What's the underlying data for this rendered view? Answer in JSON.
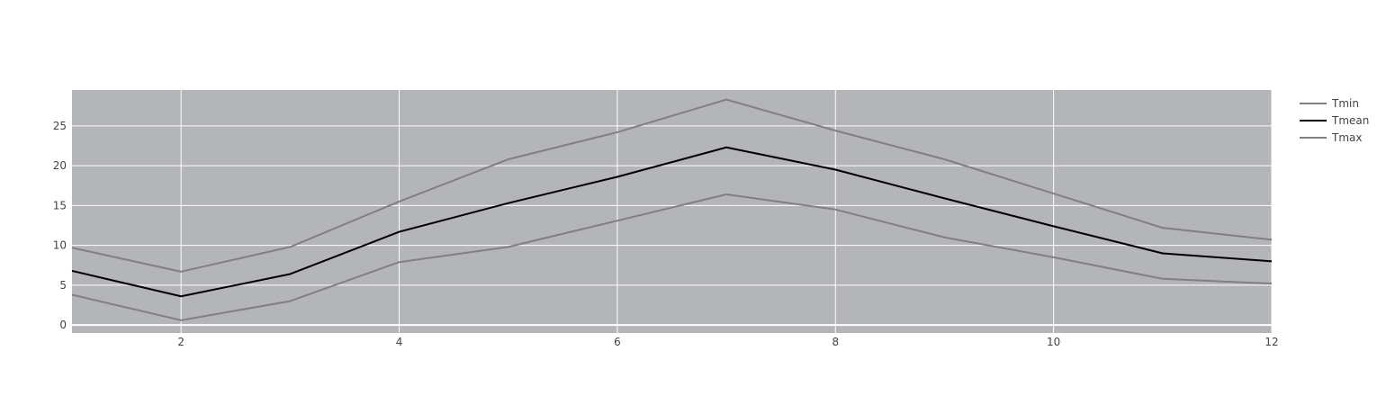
{
  "chart_data": {
    "type": "line",
    "title": "",
    "xlabel": "",
    "ylabel": "",
    "x": [
      1,
      2,
      3,
      4,
      5,
      6,
      7,
      8,
      9,
      10,
      11,
      12
    ],
    "xlim": [
      1,
      12
    ],
    "ylim": [
      -1,
      29.5
    ],
    "xticks": [
      2,
      4,
      6,
      8,
      10,
      12
    ],
    "yticks": [
      0,
      5,
      10,
      15,
      20,
      25
    ],
    "grid": true,
    "plot_background": "#b3b5b8",
    "grid_color": "#ffffff",
    "legend_position": "top-right",
    "series": [
      {
        "name": "Tmin",
        "color": "#808080",
        "values": [
          3.8,
          0.6,
          3.0,
          7.9,
          9.8,
          13.1,
          16.4,
          14.5,
          11.0,
          8.5,
          5.8,
          5.2
        ]
      },
      {
        "name": "Tmean",
        "color": "#000000",
        "values": [
          6.8,
          3.6,
          6.4,
          11.7,
          15.3,
          18.6,
          22.3,
          19.5,
          15.9,
          12.4,
          9.0,
          8.0
        ]
      },
      {
        "name": "Tmax",
        "color": "#808080",
        "values": [
          9.7,
          6.7,
          9.8,
          15.5,
          20.8,
          24.2,
          28.3,
          24.4,
          20.8,
          16.5,
          12.2,
          10.7
        ]
      }
    ]
  }
}
